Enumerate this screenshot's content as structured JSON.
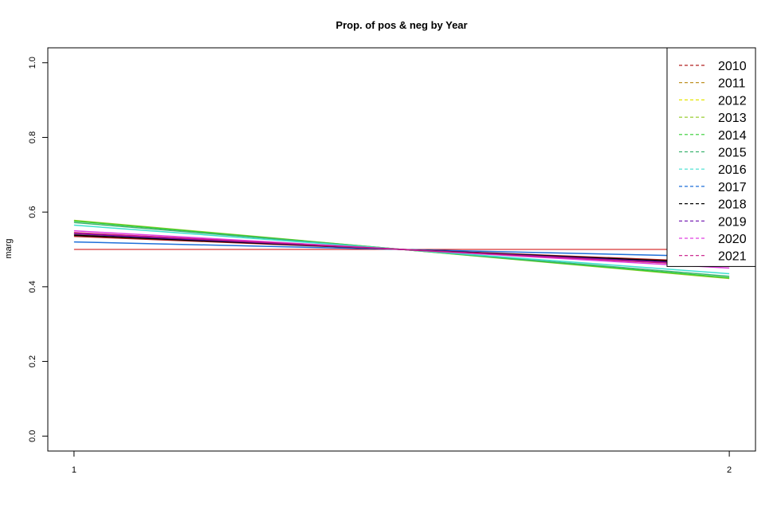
{
  "chart_data": {
    "type": "line",
    "title": "Prop. of pos & neg by Year",
    "xlabel": "",
    "ylabel": "marg",
    "x": [
      1,
      2
    ],
    "x_ticks": [
      "1",
      "2"
    ],
    "y_ticks": [
      "0.0",
      "0.2",
      "0.4",
      "0.6",
      "0.8",
      "1.0"
    ],
    "xlim": [
      0.96,
      2.04
    ],
    "ylim": [
      -0.04,
      1.04
    ],
    "grid": false,
    "legend_position": "top-right",
    "reference_line": {
      "values": [
        0.5,
        0.5
      ],
      "color": "#CC0000"
    },
    "series": [
      {
        "name": "2010",
        "color": "#B22222",
        "values": [
          0.535,
          0.465
        ]
      },
      {
        "name": "2011",
        "color": "#B8860B",
        "values": [
          0.54,
          0.46
        ]
      },
      {
        "name": "2012",
        "color": "#E6E600",
        "values": [
          0.545,
          0.455
        ]
      },
      {
        "name": "2013",
        "color": "#9ACD32",
        "values": [
          0.578,
          0.422
        ]
      },
      {
        "name": "2014",
        "color": "#32CD32",
        "values": [
          0.576,
          0.424
        ]
      },
      {
        "name": "2015",
        "color": "#3CB371",
        "values": [
          0.572,
          0.428
        ]
      },
      {
        "name": "2016",
        "color": "#40E0D0",
        "values": [
          0.565,
          0.435
        ]
      },
      {
        "name": "2017",
        "color": "#1E6FD9",
        "values": [
          0.52,
          0.48
        ]
      },
      {
        "name": "2018",
        "color": "#000000",
        "values": [
          0.538,
          0.462
        ]
      },
      {
        "name": "2019",
        "color": "#6A0DAD",
        "values": [
          0.542,
          0.458
        ]
      },
      {
        "name": "2020",
        "color": "#E040E0",
        "values": [
          0.55,
          0.45
        ]
      },
      {
        "name": "2021",
        "color": "#C71585",
        "values": [
          0.545,
          0.455
        ]
      }
    ]
  }
}
